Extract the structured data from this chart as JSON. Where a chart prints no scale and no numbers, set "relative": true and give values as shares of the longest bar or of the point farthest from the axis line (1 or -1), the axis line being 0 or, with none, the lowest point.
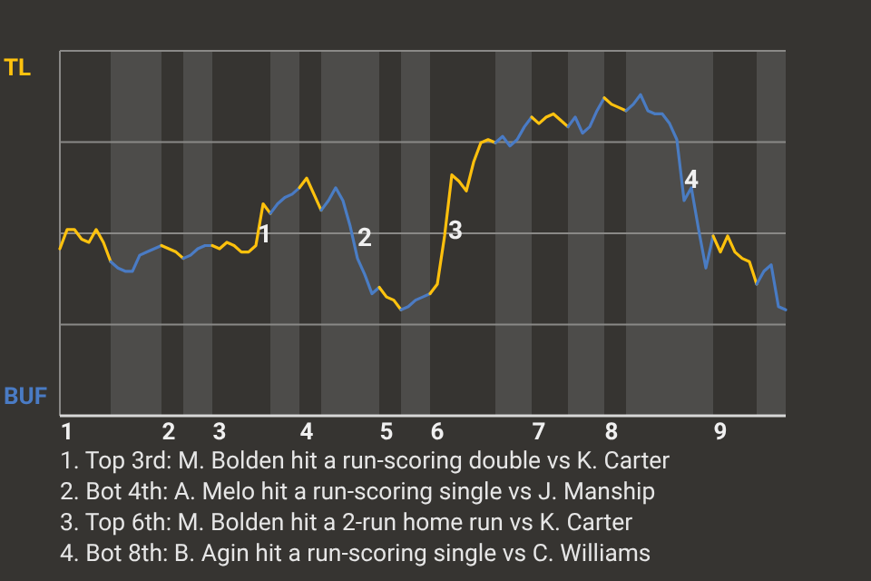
{
  "chart_data": {
    "type": "line",
    "relative": true,
    "grid": true,
    "categories": [
      null,
      "1",
      null,
      null,
      null,
      null,
      null,
      null,
      null,
      null,
      null,
      null,
      null,
      null,
      null,
      "2",
      null,
      null,
      null,
      null,
      null,
      null,
      "3",
      null,
      null,
      null,
      null,
      null,
      null,
      null,
      null,
      null,
      null,
      null,
      "4",
      null,
      null,
      null,
      null,
      null,
      null,
      null,
      null,
      null,
      null,
      "5",
      null,
      null,
      null,
      null,
      null,
      null,
      "6",
      null,
      null,
      null,
      null,
      null,
      null,
      null,
      null,
      null,
      null,
      null,
      null,
      null,
      "7",
      null,
      null,
      null,
      null,
      null,
      null,
      null,
      null,
      null,
      "8",
      null,
      null,
      null,
      null,
      null,
      null,
      null,
      null,
      null,
      null,
      null,
      null,
      null,
      null,
      "9",
      null,
      null,
      null,
      null,
      null,
      null,
      null,
      null,
      null
    ],
    "series": [
      {
        "name": "TL",
        "color": "#ffc20e",
        "values": [
          0.52,
          0.58,
          0.58,
          0.55,
          0.54,
          0.58,
          0.54,
          0.48,
          null,
          null,
          null,
          null,
          null,
          null,
          null,
          null,
          null,
          null,
          null,
          null,
          null,
          null,
          null,
          null,
          null,
          null,
          null,
          null,
          null,
          null,
          null,
          null,
          null,
          null,
          null,
          null,
          null,
          null,
          null,
          null,
          null,
          null,
          null,
          null,
          null,
          null,
          null,
          null,
          null,
          null,
          null,
          null,
          null,
          null,
          null,
          null,
          null,
          null,
          null,
          null,
          null,
          null,
          null,
          null,
          null,
          null,
          null,
          null,
          null,
          null,
          null,
          null,
          null,
          null,
          null,
          null,
          null,
          null,
          null,
          null,
          null,
          null,
          null,
          null,
          null,
          null,
          null,
          null,
          null,
          null,
          null,
          null,
          null,
          null,
          null,
          null,
          null,
          null,
          null,
          null,
          null
        ]
      },
      {
        "name": "BUF",
        "color": "#4a7bc4",
        "values": [
          null,
          null,
          null,
          null,
          null,
          null,
          null,
          0.48,
          0.46,
          0.45,
          0.45,
          0.5,
          0.51,
          0.52,
          0.53,
          null,
          null,
          null,
          null,
          null,
          null,
          null,
          null,
          null,
          null,
          null,
          null,
          null,
          null,
          null,
          null,
          null,
          null,
          null,
          null,
          null,
          null,
          null,
          null,
          null,
          null,
          null,
          null,
          null,
          null,
          null,
          null,
          null,
          null,
          null,
          null,
          null,
          null,
          null,
          null,
          null,
          null,
          null,
          null,
          null,
          null,
          null,
          null,
          null,
          null,
          null,
          null,
          null,
          null,
          null,
          null,
          null,
          null,
          null,
          null,
          null,
          null,
          null,
          null,
          null,
          null,
          null,
          null,
          null,
          null,
          null,
          null,
          null,
          null,
          null,
          null,
          null,
          null,
          null,
          null,
          null,
          null,
          null,
          null,
          null,
          null
        ]
      },
      {
        "color": "#fec30f",
        "values": [
          null,
          null,
          null,
          null,
          null,
          null,
          null,
          null,
          null,
          null,
          null,
          null,
          null,
          null,
          0.53,
          0.52,
          0.51,
          0.49,
          null,
          null,
          null,
          null,
          null,
          null,
          null,
          null,
          null,
          null,
          null,
          null,
          null,
          null,
          null,
          null,
          null,
          null,
          null,
          null,
          null,
          null,
          null,
          null,
          null,
          null,
          null,
          null,
          null,
          null,
          null,
          null,
          null,
          null,
          null,
          null,
          null,
          null,
          null,
          null,
          null,
          null,
          null,
          null,
          null,
          null,
          null,
          null,
          null,
          null,
          null,
          null,
          null,
          null,
          null,
          null,
          null,
          null,
          null,
          null,
          null,
          null,
          null,
          null,
          null,
          null,
          null,
          null,
          null,
          null,
          null,
          null,
          null,
          null,
          null,
          null,
          null,
          null,
          null,
          null,
          null,
          null,
          null
        ]
      },
      {
        "color": "#4b7cc5",
        "values": [
          null,
          null,
          null,
          null,
          null,
          null,
          null,
          null,
          null,
          null,
          null,
          null,
          null,
          null,
          null,
          null,
          null,
          0.49,
          0.5,
          0.52,
          0.53,
          0.53,
          null,
          null,
          null,
          null,
          null,
          null,
          null,
          null,
          null,
          null,
          null,
          null,
          null,
          null,
          null,
          null,
          null,
          null,
          null,
          null,
          null,
          null,
          null,
          null,
          null,
          null,
          null,
          null,
          null,
          null,
          null,
          null,
          null,
          null,
          null,
          null,
          null,
          null,
          null,
          null,
          null,
          null,
          null,
          null,
          null,
          null,
          null,
          null,
          null,
          null,
          null,
          null,
          null,
          null,
          null,
          null,
          null,
          null,
          null,
          null,
          null,
          null,
          null,
          null,
          null,
          null,
          null,
          null,
          null,
          null,
          null,
          null,
          null,
          null,
          null,
          null,
          null,
          null,
          null
        ]
      },
      {
        "color": "#ffc10c",
        "values": [
          null,
          null,
          null,
          null,
          null,
          null,
          null,
          null,
          null,
          null,
          null,
          null,
          null,
          null,
          null,
          null,
          null,
          null,
          null,
          null,
          null,
          0.53,
          0.52,
          0.54,
          0.53,
          0.51,
          0.51,
          0.53,
          0.66,
          0.63,
          null,
          null,
          null,
          null,
          null,
          null,
          null,
          null,
          null,
          null,
          null,
          null,
          null,
          null,
          null,
          null,
          null,
          null,
          null,
          null,
          null,
          null,
          null,
          null,
          null,
          null,
          null,
          null,
          null,
          null,
          null,
          null,
          null,
          null,
          null,
          null,
          null,
          null,
          null,
          null,
          null,
          null,
          null,
          null,
          null,
          null,
          null,
          null,
          null,
          null,
          null,
          null,
          null,
          null,
          null,
          null,
          null,
          null,
          null,
          null,
          null,
          null,
          null,
          null,
          null,
          null,
          null,
          null,
          null,
          null,
          null
        ]
      },
      {
        "color": "#497ac3",
        "values": [
          null,
          null,
          null,
          null,
          null,
          null,
          null,
          null,
          null,
          null,
          null,
          null,
          null,
          null,
          null,
          null,
          null,
          null,
          null,
          null,
          null,
          null,
          null,
          null,
          null,
          null,
          null,
          null,
          null,
          0.63,
          0.66,
          0.68,
          0.69,
          0.71,
          null,
          null,
          null,
          null,
          null,
          null,
          null,
          null,
          null,
          null,
          null,
          null,
          null,
          null,
          null,
          null,
          null,
          null,
          null,
          null,
          null,
          null,
          null,
          null,
          null,
          null,
          null,
          null,
          null,
          null,
          null,
          null,
          null,
          null,
          null,
          null,
          null,
          null,
          null,
          null,
          null,
          null,
          null,
          null,
          null,
          null,
          null,
          null,
          null,
          null,
          null,
          null,
          null,
          null,
          null,
          null,
          null,
          null,
          null,
          null,
          null,
          null,
          null,
          null,
          null,
          null,
          null
        ]
      },
      {
        "color": "#fdc20e",
        "values": [
          null,
          null,
          null,
          null,
          null,
          null,
          null,
          null,
          null,
          null,
          null,
          null,
          null,
          null,
          null,
          null,
          null,
          null,
          null,
          null,
          null,
          null,
          null,
          null,
          null,
          null,
          null,
          null,
          null,
          null,
          null,
          null,
          null,
          0.71,
          0.74,
          0.69,
          0.64,
          null,
          null,
          null,
          null,
          null,
          null,
          null,
          null,
          null,
          null,
          null,
          null,
          null,
          null,
          null,
          null,
          null,
          null,
          null,
          null,
          null,
          null,
          null,
          null,
          null,
          null,
          null,
          null,
          null,
          null,
          null,
          null,
          null,
          null,
          null,
          null,
          null,
          null,
          null,
          null,
          null,
          null,
          null,
          null,
          null,
          null,
          null,
          null,
          null,
          null,
          null,
          null,
          null,
          null,
          null,
          null,
          null,
          null,
          null,
          null,
          null,
          null,
          null,
          null
        ]
      },
      {
        "color": "#4a7dc4",
        "values": [
          null,
          null,
          null,
          null,
          null,
          null,
          null,
          null,
          null,
          null,
          null,
          null,
          null,
          null,
          null,
          null,
          null,
          null,
          null,
          null,
          null,
          null,
          null,
          null,
          null,
          null,
          null,
          null,
          null,
          null,
          null,
          null,
          null,
          null,
          null,
          null,
          0.64,
          0.67,
          0.71,
          0.67,
          0.59,
          0.49,
          0.44,
          0.38,
          0.4,
          null,
          null,
          null,
          null,
          null,
          null,
          null,
          null,
          null,
          null,
          null,
          null,
          null,
          null,
          null,
          null,
          null,
          null,
          null,
          null,
          null,
          null,
          null,
          null,
          null,
          null,
          null,
          null,
          null,
          null,
          null,
          null,
          null,
          null,
          null,
          null,
          null,
          null,
          null,
          null,
          null,
          null,
          null,
          null,
          null,
          null,
          null,
          null,
          null,
          null,
          null,
          null,
          null,
          null,
          null,
          null
        ]
      },
      {
        "color": "#ffc40f",
        "values": [
          null,
          null,
          null,
          null,
          null,
          null,
          null,
          null,
          null,
          null,
          null,
          null,
          null,
          null,
          null,
          null,
          null,
          null,
          null,
          null,
          null,
          null,
          null,
          null,
          null,
          null,
          null,
          null,
          null,
          null,
          null,
          null,
          null,
          null,
          null,
          null,
          null,
          null,
          null,
          null,
          null,
          null,
          null,
          null,
          0.4,
          0.37,
          0.36,
          0.33,
          null,
          null,
          null,
          null,
          null,
          null,
          null,
          null,
          null,
          null,
          null,
          null,
          null,
          null,
          null,
          null,
          null,
          null,
          null,
          null,
          null,
          null,
          null,
          null,
          null,
          null,
          null,
          null,
          null,
          null,
          null,
          null,
          null,
          null,
          null,
          null,
          null,
          null,
          null,
          null,
          null,
          null,
          null,
          null,
          null,
          null,
          null,
          null,
          null,
          null,
          null,
          null,
          null
        ]
      },
      {
        "color": "#4c7bc3",
        "values": [
          null,
          null,
          null,
          null,
          null,
          null,
          null,
          null,
          null,
          null,
          null,
          null,
          null,
          null,
          null,
          null,
          null,
          null,
          null,
          null,
          null,
          null,
          null,
          null,
          null,
          null,
          null,
          null,
          null,
          null,
          null,
          null,
          null,
          null,
          null,
          null,
          null,
          null,
          null,
          null,
          null,
          null,
          null,
          null,
          null,
          null,
          null,
          0.33,
          0.34,
          0.36,
          0.37,
          0.38,
          null,
          null,
          null,
          null,
          null,
          null,
          null,
          null,
          null,
          null,
          null,
          null,
          null,
          null,
          null,
          null,
          null,
          null,
          null,
          null,
          null,
          null,
          null,
          null,
          null,
          null,
          null,
          null,
          null,
          null,
          null,
          null,
          null,
          null,
          null,
          null,
          null,
          null,
          null,
          null,
          null,
          null,
          null,
          null,
          null,
          null,
          null,
          null,
          null
        ]
      },
      {
        "color": "#fec00d",
        "values": [
          null,
          null,
          null,
          null,
          null,
          null,
          null,
          null,
          null,
          null,
          null,
          null,
          null,
          null,
          null,
          null,
          null,
          null,
          null,
          null,
          null,
          null,
          null,
          null,
          null,
          null,
          null,
          null,
          null,
          null,
          null,
          null,
          null,
          null,
          null,
          null,
          null,
          null,
          null,
          null,
          null,
          null,
          null,
          null,
          null,
          null,
          null,
          null,
          null,
          null,
          null,
          0.38,
          0.41,
          0.56,
          0.75,
          0.73,
          0.7,
          0.79,
          0.85,
          0.86,
          0.85,
          null,
          null,
          null,
          null,
          null,
          null,
          null,
          null,
          null,
          null,
          null,
          null,
          null,
          null,
          null,
          null,
          null,
          null,
          null,
          null,
          null,
          null,
          null,
          null,
          null,
          null,
          null,
          null,
          null,
          null,
          null,
          null,
          null,
          null,
          null,
          null,
          null,
          null,
          null,
          null
        ]
      },
      {
        "color": "#497bc6",
        "values": [
          null,
          null,
          null,
          null,
          null,
          null,
          null,
          null,
          null,
          null,
          null,
          null,
          null,
          null,
          null,
          null,
          null,
          null,
          null,
          null,
          null,
          null,
          null,
          null,
          null,
          null,
          null,
          null,
          null,
          null,
          null,
          null,
          null,
          null,
          null,
          null,
          null,
          null,
          null,
          null,
          null,
          null,
          null,
          null,
          null,
          null,
          null,
          null,
          null,
          null,
          null,
          null,
          null,
          null,
          null,
          null,
          null,
          null,
          null,
          null,
          0.85,
          0.87,
          0.84,
          0.86,
          0.9,
          0.93,
          null,
          null,
          null,
          null,
          null,
          null,
          null,
          null,
          null,
          null,
          null,
          null,
          null,
          null,
          null,
          null,
          null,
          null,
          null,
          null,
          null,
          null,
          null,
          null,
          null,
          null,
          null,
          null,
          null,
          null,
          null,
          null,
          null,
          null,
          null
        ]
      },
      {
        "color": "#ffc310",
        "values": [
          null,
          null,
          null,
          null,
          null,
          null,
          null,
          null,
          null,
          null,
          null,
          null,
          null,
          null,
          null,
          null,
          null,
          null,
          null,
          null,
          null,
          null,
          null,
          null,
          null,
          null,
          null,
          null,
          null,
          null,
          null,
          null,
          null,
          null,
          null,
          null,
          null,
          null,
          null,
          null,
          null,
          null,
          null,
          null,
          null,
          null,
          null,
          null,
          null,
          null,
          null,
          null,
          null,
          null,
          null,
          null,
          null,
          null,
          null,
          null,
          null,
          null,
          null,
          null,
          null,
          0.93,
          0.91,
          0.93,
          0.94,
          0.92,
          0.9,
          null,
          null,
          null,
          null,
          null,
          null,
          null,
          null,
          null,
          null,
          null,
          null,
          null,
          null,
          null,
          null,
          null,
          null,
          null,
          null,
          null,
          null,
          null,
          null,
          null,
          null,
          null,
          null,
          null,
          null
        ]
      },
      {
        "color": "#4b7ac4",
        "values": [
          null,
          null,
          null,
          null,
          null,
          null,
          null,
          null,
          null,
          null,
          null,
          null,
          null,
          null,
          null,
          null,
          null,
          null,
          null,
          null,
          null,
          null,
          null,
          null,
          null,
          null,
          null,
          null,
          null,
          null,
          null,
          null,
          null,
          null,
          null,
          null,
          null,
          null,
          null,
          null,
          null,
          null,
          null,
          null,
          null,
          null,
          null,
          null,
          null,
          null,
          null,
          null,
          null,
          null,
          null,
          null,
          null,
          null,
          null,
          null,
          null,
          null,
          null,
          null,
          null,
          null,
          null,
          null,
          null,
          null,
          0.9,
          0.93,
          0.88,
          0.9,
          0.95,
          0.99,
          null,
          null,
          null,
          null,
          null,
          null,
          null,
          null,
          null,
          null,
          null,
          null,
          null,
          null,
          null,
          null,
          null,
          null,
          null,
          null,
          null,
          null,
          null,
          null,
          null
        ]
      },
      {
        "color": "#fdc10e",
        "values": [
          null,
          null,
          null,
          null,
          null,
          null,
          null,
          null,
          null,
          null,
          null,
          null,
          null,
          null,
          null,
          null,
          null,
          null,
          null,
          null,
          null,
          null,
          null,
          null,
          null,
          null,
          null,
          null,
          null,
          null,
          null,
          null,
          null,
          null,
          null,
          null,
          null,
          null,
          null,
          null,
          null,
          null,
          null,
          null,
          null,
          null,
          null,
          null,
          null,
          null,
          null,
          null,
          null,
          null,
          null,
          null,
          null,
          null,
          null,
          null,
          null,
          null,
          null,
          null,
          null,
          null,
          null,
          null,
          null,
          null,
          null,
          null,
          null,
          null,
          null,
          0.99,
          0.97,
          0.96,
          0.95,
          null,
          null,
          null,
          null,
          null,
          null,
          null,
          null,
          null,
          null,
          null,
          null,
          null,
          null,
          null,
          null,
          null,
          null,
          null,
          null,
          null,
          null
        ]
      },
      {
        "color": "#4a7cc2",
        "values": [
          null,
          null,
          null,
          null,
          null,
          null,
          null,
          null,
          null,
          null,
          null,
          null,
          null,
          null,
          null,
          null,
          null,
          null,
          null,
          null,
          null,
          null,
          null,
          null,
          null,
          null,
          null,
          null,
          null,
          null,
          null,
          null,
          null,
          null,
          null,
          null,
          null,
          null,
          null,
          null,
          null,
          null,
          null,
          null,
          null,
          null,
          null,
          null,
          null,
          null,
          null,
          null,
          null,
          null,
          null,
          null,
          null,
          null,
          null,
          null,
          null,
          null,
          null,
          null,
          null,
          null,
          null,
          null,
          null,
          null,
          null,
          null,
          null,
          null,
          null,
          null,
          null,
          null,
          0.95,
          0.97,
          1,
          0.95,
          0.94,
          0.94,
          0.91,
          0.86,
          0.67,
          0.71,
          0.58,
          0.46,
          0.56,
          null,
          null,
          null,
          null,
          null,
          null,
          null,
          null,
          null,
          null
        ]
      },
      {
        "color": "#ffc20c",
        "values": [
          null,
          null,
          null,
          null,
          null,
          null,
          null,
          null,
          null,
          null,
          null,
          null,
          null,
          null,
          null,
          null,
          null,
          null,
          null,
          null,
          null,
          null,
          null,
          null,
          null,
          null,
          null,
          null,
          null,
          null,
          null,
          null,
          null,
          null,
          null,
          null,
          null,
          null,
          null,
          null,
          null,
          null,
          null,
          null,
          null,
          null,
          null,
          null,
          null,
          null,
          null,
          null,
          null,
          null,
          null,
          null,
          null,
          null,
          null,
          null,
          null,
          null,
          null,
          null,
          null,
          null,
          null,
          null,
          null,
          null,
          null,
          null,
          null,
          null,
          null,
          null,
          null,
          null,
          null,
          null,
          null,
          null,
          null,
          null,
          null,
          null,
          null,
          null,
          null,
          null,
          0.56,
          0.51,
          0.56,
          0.51,
          0.49,
          0.48,
          0.41,
          null,
          null,
          null,
          null
        ]
      },
      {
        "color": "#487bc4",
        "values": [
          null,
          null,
          null,
          null,
          null,
          null,
          null,
          null,
          null,
          null,
          null,
          null,
          null,
          null,
          null,
          null,
          null,
          null,
          null,
          null,
          null,
          null,
          null,
          null,
          null,
          null,
          null,
          null,
          null,
          null,
          null,
          null,
          null,
          null,
          null,
          null,
          null,
          null,
          null,
          null,
          null,
          null,
          null,
          null,
          null,
          null,
          null,
          null,
          null,
          null,
          null,
          null,
          null,
          null,
          null,
          null,
          null,
          null,
          null,
          null,
          null,
          null,
          null,
          null,
          null,
          null,
          null,
          null,
          null,
          null,
          null,
          null,
          null,
          null,
          null,
          null,
          null,
          null,
          null,
          null,
          null,
          null,
          null,
          null,
          null,
          null,
          null,
          null,
          null,
          null,
          null,
          null,
          null,
          null,
          null,
          null,
          0.41,
          0.45,
          0.47,
          0.34,
          0.33
        ]
      }
    ],
    "annotations": [
      "1",
      "2",
      "3",
      "4",
      "1. Top 3rd: M. Bolden hit a run-scoring double vs K. Carter",
      "2. Bot 4th: A. Melo hit a run-scoring single vs J. Manship",
      "3. Top 6th: M. Bolden hit a 2-run home run vs K. Carter",
      "4. Bot 8th: B. Agin hit a run-scoring single vs C. Williams"
    ]
  }
}
